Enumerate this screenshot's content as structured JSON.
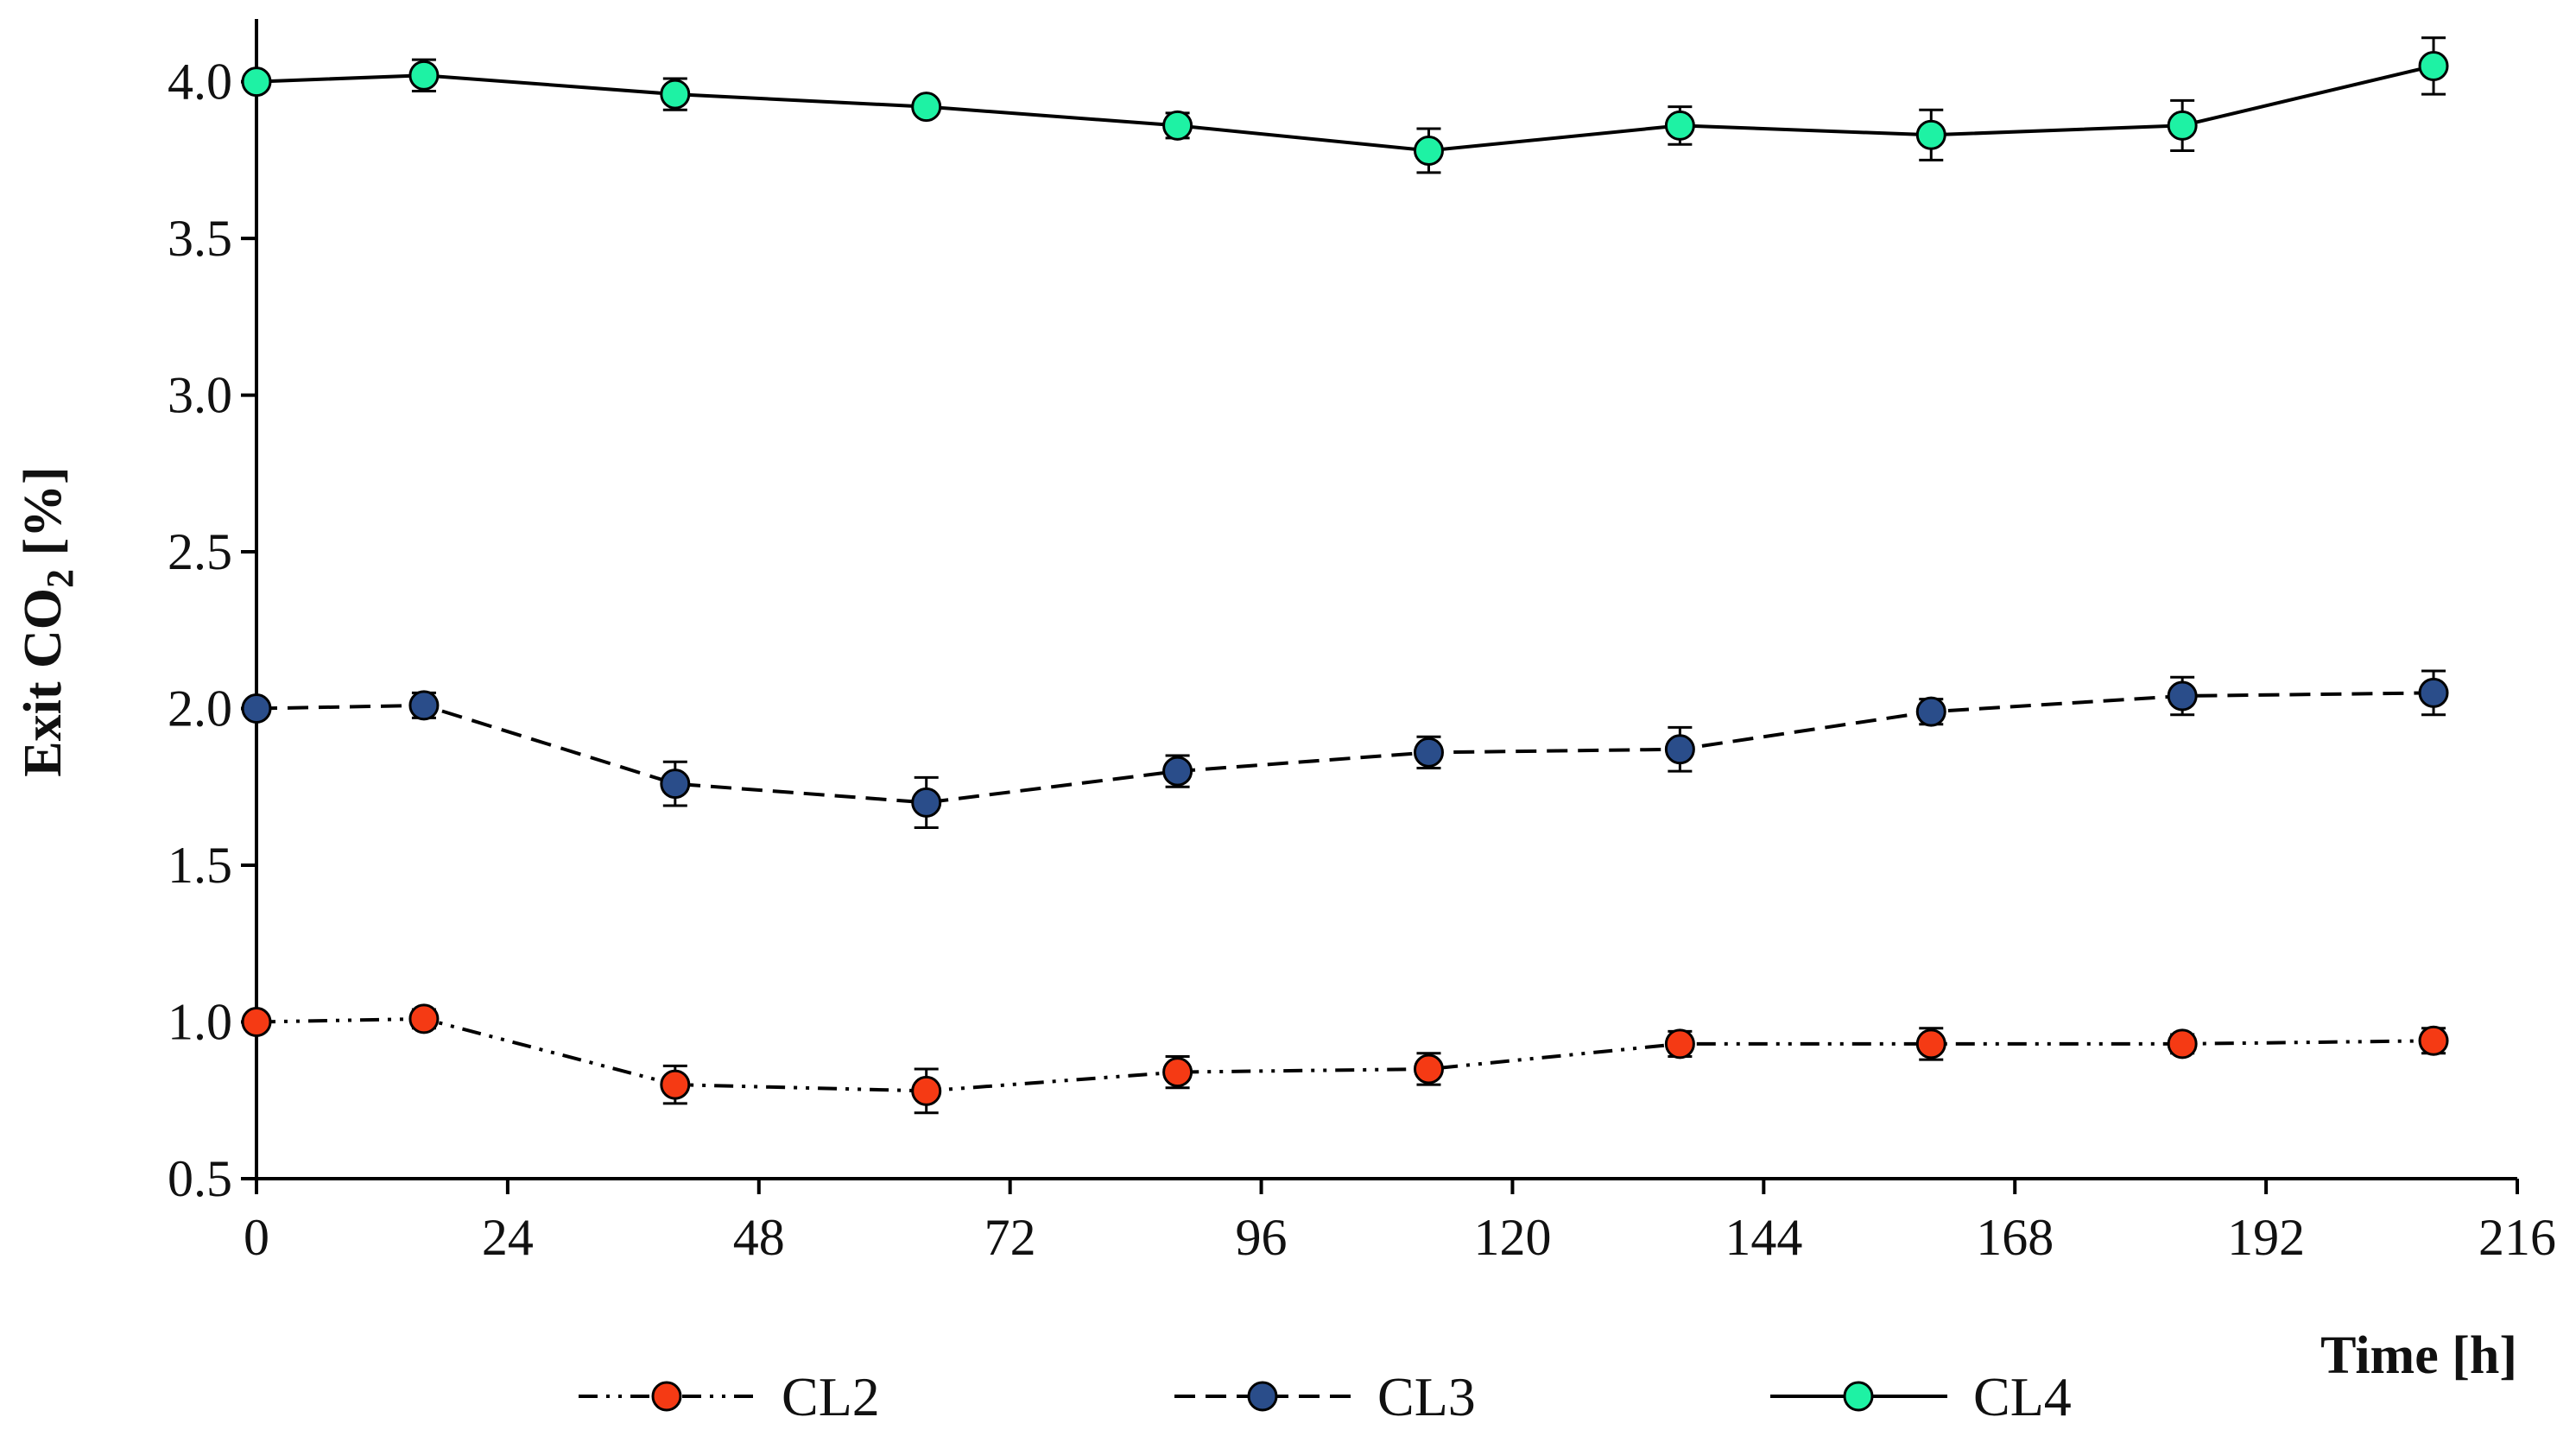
{
  "chart_data": {
    "type": "line",
    "title": "",
    "xlabel": "Time [h]",
    "ylabel_main": "Exit CO",
    "ylabel_sub": "2",
    "ylabel_unit": " [%]",
    "xlim": [
      0,
      216
    ],
    "ylim": [
      0.5,
      4.2
    ],
    "xticks": [
      0,
      24,
      48,
      72,
      96,
      120,
      144,
      168,
      192,
      216
    ],
    "xtick_labels": [
      "0",
      "24",
      "48",
      "72",
      "96",
      "120",
      "144",
      "168",
      "192",
      "216"
    ],
    "yticks": [
      0.5,
      1.0,
      1.5,
      2.0,
      2.5,
      3.0,
      3.5,
      4.0
    ],
    "ytick_labels": [
      "0.5",
      "1.0",
      "1.5",
      "2.0",
      "2.5",
      "3.0",
      "3.5",
      "4.0"
    ],
    "grid": false,
    "legend_position": "bottom",
    "x": [
      0,
      16,
      40,
      64,
      88,
      112,
      136,
      160,
      184,
      208
    ],
    "series": [
      {
        "name": "CL2",
        "values": [
          1.0,
          1.01,
          0.8,
          0.78,
          0.84,
          0.85,
          0.93,
          0.93,
          0.93,
          0.94
        ],
        "errors": [
          0.0,
          0.03,
          0.06,
          0.07,
          0.05,
          0.05,
          0.04,
          0.05,
          0.03,
          0.04
        ],
        "color": "#f53a14",
        "line_style": "dash-dot-dot"
      },
      {
        "name": "CL3",
        "values": [
          2.0,
          2.01,
          1.76,
          1.7,
          1.8,
          1.86,
          1.87,
          1.99,
          2.04,
          2.05
        ],
        "errors": [
          0.0,
          0.04,
          0.07,
          0.08,
          0.05,
          0.05,
          0.07,
          0.04,
          0.06,
          0.07
        ],
        "color": "#2a4d8a",
        "line_style": "dashed"
      },
      {
        "name": "CL4",
        "values": [
          4.0,
          4.02,
          3.96,
          3.92,
          3.86,
          3.78,
          3.86,
          3.83,
          3.86,
          4.05
        ],
        "errors": [
          0.0,
          0.05,
          0.05,
          0.02,
          0.04,
          0.07,
          0.06,
          0.08,
          0.08,
          0.09
        ],
        "color": "#1ef2a4",
        "line_style": "solid"
      }
    ]
  }
}
